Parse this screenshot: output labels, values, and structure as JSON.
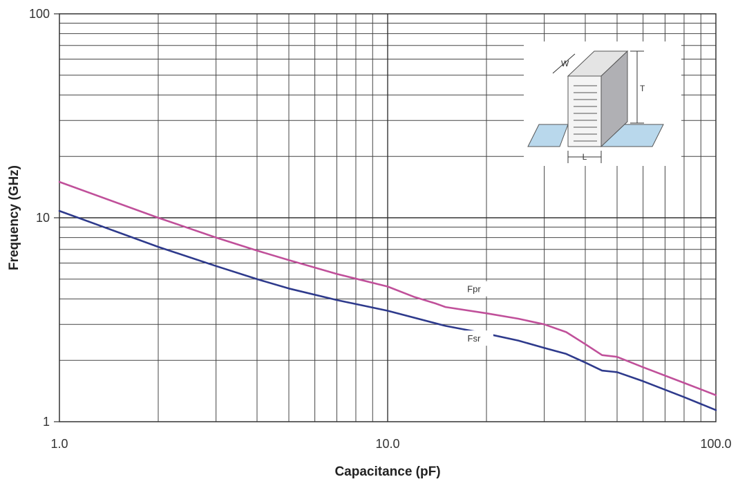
{
  "chart_data": {
    "type": "line",
    "xscale": "log",
    "yscale": "log",
    "xlim": [
      1.0,
      100.0
    ],
    "ylim": [
      1,
      100
    ],
    "xlabel": "Capacitance (pF)",
    "ylabel": "Frequency (GHz)",
    "x_ticks": [
      "1.0",
      "10.0",
      "100.0"
    ],
    "y_ticks": [
      "1",
      "10",
      "100"
    ],
    "grid": true,
    "series": [
      {
        "name": "Fpr",
        "color": "#c0509a",
        "x": [
          1.0,
          2.0,
          3.0,
          4.0,
          5.0,
          7.0,
          10.0,
          12.0,
          14.0,
          15.0,
          20.0,
          25.0,
          30.0,
          35.0,
          40.0,
          45.0,
          50.0,
          60.0,
          80.0,
          100.0
        ],
        "y": [
          15,
          10,
          8,
          6.9,
          6.2,
          5.3,
          4.6,
          4.1,
          3.8,
          3.65,
          3.4,
          3.2,
          3.0,
          2.75,
          2.4,
          2.12,
          2.08,
          1.85,
          1.55,
          1.35
        ]
      },
      {
        "name": "Fsr",
        "color": "#2e3a8c",
        "x": [
          1.0,
          2.0,
          3.0,
          4.0,
          5.0,
          7.0,
          10.0,
          15.0,
          20.0,
          25.0,
          30.0,
          35.0,
          40.0,
          45.0,
          50.0,
          60.0,
          80.0,
          100.0
        ],
        "y": [
          10.8,
          7.2,
          5.8,
          5.0,
          4.5,
          3.95,
          3.5,
          2.95,
          2.7,
          2.5,
          2.3,
          2.15,
          1.95,
          1.78,
          1.75,
          1.58,
          1.32,
          1.14
        ]
      }
    ],
    "inset": {
      "labels": [
        "W",
        "T",
        "L"
      ]
    }
  }
}
